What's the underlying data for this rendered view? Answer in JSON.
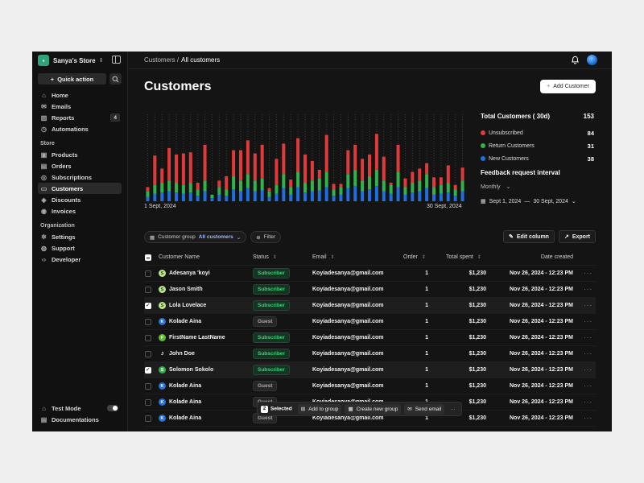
{
  "sidebar": {
    "store_name": "Sanya's Store",
    "quick_action": "Quick action",
    "main_items": [
      {
        "label": "Home",
        "icon": "home-icon"
      },
      {
        "label": "Emails",
        "icon": "mail-icon"
      },
      {
        "label": "Reports",
        "icon": "bar-chart-icon",
        "badge": "4"
      },
      {
        "label": "Automations",
        "icon": "clock-icon"
      }
    ],
    "store_section": "Store",
    "store_items": [
      {
        "label": "Products",
        "icon": "box-icon"
      },
      {
        "label": "Orders",
        "icon": "clipboard-icon"
      },
      {
        "label": "Subscriptions",
        "icon": "check-circle-icon"
      },
      {
        "label": "Customers",
        "icon": "id-card-icon",
        "active": true
      },
      {
        "label": "Discounts",
        "icon": "tag-icon"
      },
      {
        "label": "Invoices",
        "icon": "signal-icon"
      }
    ],
    "org_section": "Organization",
    "org_items": [
      {
        "label": "Settings",
        "icon": "gear-icon"
      },
      {
        "label": "Support",
        "icon": "lifebuoy-icon"
      },
      {
        "label": "Developer",
        "icon": "code-icon"
      }
    ],
    "test_mode": "Test Mode",
    "documentations": "Documentations"
  },
  "header": {
    "crumb_parent": "Customers /",
    "crumb_current": "All customers",
    "title": "Customers",
    "add_button": "Add Customer"
  },
  "chart_data": {
    "type": "bar",
    "stacked": true,
    "x_start_label": "1 Sept, 2024",
    "x_end_label": "30 Sept, 2024",
    "series": [
      {
        "name": "New Customers",
        "color": "#1f6fe0",
        "values": [
          4,
          7,
          8,
          9,
          8,
          7,
          8,
          5,
          9,
          3,
          6,
          5,
          11,
          9,
          12,
          9,
          10,
          4,
          7,
          12,
          6,
          13,
          8,
          9,
          10,
          13,
          5,
          6,
          12,
          14,
          9,
          11,
          14,
          9,
          7,
          13,
          6,
          8,
          9,
          12,
          6,
          7,
          8,
          5,
          9
        ]
      },
      {
        "name": "Return Customers",
        "color": "#2fb34a",
        "values": [
          5,
          8,
          9,
          10,
          9,
          8,
          9,
          6,
          10,
          3,
          7,
          6,
          12,
          10,
          13,
          10,
          11,
          5,
          8,
          13,
          7,
          14,
          9,
          10,
          11,
          14,
          6,
          7,
          13,
          15,
          10,
          12,
          15,
          10,
          8,
          14,
          7,
          9,
          10,
          13,
          7,
          8,
          9,
          6,
          10
        ]
      },
      {
        "name": "Unsubscribed",
        "color": "#e03b3b",
        "values": [
          4,
          27,
          13,
          30,
          26,
          29,
          28,
          6,
          33,
          0,
          6,
          12,
          24,
          28,
          31,
          25,
          31,
          3,
          24,
          28,
          7,
          31,
          26,
          18,
          8,
          34,
          5,
          3,
          22,
          23,
          20,
          20,
          33,
          22,
          2,
          25,
          8,
          10,
          11,
          10,
          9,
          7,
          16,
          4,
          12
        ]
      }
    ],
    "ylim": [
      0,
      80
    ]
  },
  "stats": {
    "title": "Total Customers ( 30d)",
    "total": "153",
    "rows": [
      {
        "label": "Unsubscribed",
        "value": "84",
        "color": "#e03b3b"
      },
      {
        "label": "Return Customers",
        "value": "31",
        "color": "#2fb34a"
      },
      {
        "label": "New Customers",
        "value": "38",
        "color": "#1f6fe0"
      }
    ],
    "feedback_title": "Feedback request interval",
    "interval": "Monthly",
    "range_start": "Sept 1, 2024",
    "range_end": "30 Sept, 2024"
  },
  "filters": {
    "group_label": "Customer group",
    "group_value": "All customers",
    "filter": "Filter",
    "edit_column": "Edit column",
    "export": "Export"
  },
  "table": {
    "headers": {
      "name": "Customer Name",
      "status": "Status",
      "email": "Email",
      "order": "Order",
      "spent": "Total spent",
      "date": "Date created"
    },
    "rows": [
      {
        "name": "Adesanya 'koyi",
        "initial": "S",
        "avatar_color": "#b9e58a",
        "avatar_text": "#2a4a10",
        "status": "Subscriber",
        "email": "Koyiadesanya@gmail.com",
        "order": "1",
        "spent": "$1,230",
        "date": "Nov 26, 2024 - 12:23 PM",
        "checked": false
      },
      {
        "name": "Jason Smith",
        "initial": "S",
        "avatar_color": "#b9e58a",
        "avatar_text": "#2a4a10",
        "status": "Subscriber",
        "email": "Koyiadesanya@gmail.com",
        "order": "1",
        "spent": "$1,230",
        "date": "Nov 26, 2024 - 12:23 PM",
        "checked": false
      },
      {
        "name": "Lola Lovelace",
        "initial": "S",
        "avatar_color": "#b9e58a",
        "avatar_text": "#2a4a10",
        "status": "Subscriber",
        "email": "Koyiadesanya@gmail.com",
        "order": "1",
        "spent": "$1,230",
        "date": "Nov 26, 2024 - 12:23 PM",
        "checked": true
      },
      {
        "name": "Kolade Aina",
        "initial": "K",
        "avatar_color": "#1f6fe0",
        "avatar_text": "#ffffff",
        "status": "Guest",
        "email": "Koyiadesanya@gmail.com",
        "order": "1",
        "spent": "$1,230",
        "date": "Nov 26, 2024 - 12:23 PM",
        "checked": false
      },
      {
        "name": "FirstName LastName",
        "initial": "F",
        "avatar_color": "#5fbf2a",
        "avatar_text": "#ffffff",
        "status": "Subscriber",
        "email": "Koyiadesanya@gmail.com",
        "order": "1",
        "spent": "$1,230",
        "date": "Nov 26, 2024 - 12:23 PM",
        "checked": false
      },
      {
        "name": "John Doe",
        "initial": "J",
        "avatar_color": "#141414",
        "avatar_text": "#ffffff",
        "status": "Subscriber",
        "email": "Koyiadesanya@gmail.com",
        "order": "1",
        "spent": "$1,230",
        "date": "Nov 26, 2024 - 12:23 PM",
        "checked": false
      },
      {
        "name": "Solomon Sokolo",
        "initial": "S",
        "avatar_color": "#2fb34a",
        "avatar_text": "#ffffff",
        "status": "Subscriber",
        "email": "Koyiadesanya@gmail.com",
        "order": "1",
        "spent": "$1,230",
        "date": "Nov 26, 2024 - 12:23 PM",
        "checked": true
      },
      {
        "name": "Kolade Aina",
        "initial": "K",
        "avatar_color": "#1f6fe0",
        "avatar_text": "#ffffff",
        "status": "Guest",
        "email": "Koyiadesanya@gmail.com",
        "order": "1",
        "spent": "$1,230",
        "date": "Nov 26, 2024 - 12:23 PM",
        "checked": false
      },
      {
        "name": "Kolade Aina",
        "initial": "K",
        "avatar_color": "#1f6fe0",
        "avatar_text": "#ffffff",
        "status": "Guest",
        "email": "Koyiadesanya@gmail.com",
        "order": "1",
        "spent": "$1,230",
        "date": "Nov 26, 2024 - 12:23 PM",
        "checked": false
      },
      {
        "name": "Kolade Aina",
        "initial": "K",
        "avatar_color": "#1f6fe0",
        "avatar_text": "#ffffff",
        "status": "Guest",
        "email": "Koyiadesanya@gmail.com",
        "order": "1",
        "spent": "$1,230",
        "date": "Nov 26, 2024 - 12:23 PM",
        "checked": false
      }
    ]
  },
  "bulk": {
    "count": "2",
    "selected": "Selected",
    "add_to_group": "Add to group",
    "new_group": "Create new group",
    "send_email": "Send email"
  }
}
